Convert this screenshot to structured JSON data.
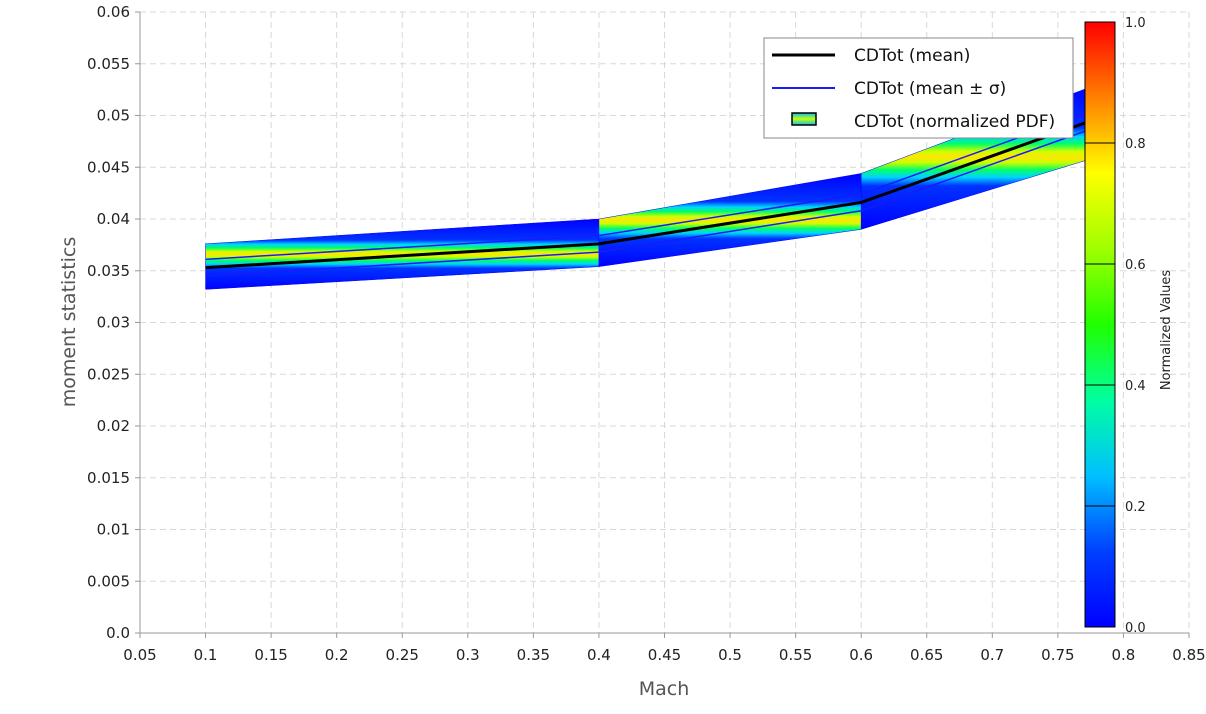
{
  "chart_data": {
    "type": "area",
    "xlabel": "Mach",
    "ylabel": "moment statistics",
    "xlim": [
      0.05,
      0.85
    ],
    "ylim": [
      0.0,
      0.06
    ],
    "xticks": [
      "0.05",
      "0.1",
      "0.15",
      "0.2",
      "0.25",
      "0.3",
      "0.35",
      "0.4",
      "0.45",
      "0.5",
      "0.55",
      "0.6",
      "0.65",
      "0.7",
      "0.75",
      "0.8",
      "0.85"
    ],
    "yticks": [
      "0.0",
      "0.005",
      "0.01",
      "0.015",
      "0.02",
      "0.025",
      "0.03",
      "0.035",
      "0.04",
      "0.045",
      "0.05",
      "0.055",
      "0.06"
    ],
    "grid": true,
    "x": [
      0.1,
      0.4,
      0.6,
      0.78
    ],
    "series": [
      {
        "name": "CDTot (mean)",
        "values": [
          0.0353,
          0.0376,
          0.0416,
          0.0497
        ],
        "color": "#000000"
      },
      {
        "name": "CDTot (mean ± σ)",
        "upper": [
          0.0361,
          0.0384,
          0.0424,
          0.0506
        ],
        "lower": [
          0.0345,
          0.0368,
          0.0408,
          0.0489
        ],
        "color": "#1a1aff"
      },
      {
        "name": "CDTot (normalized PDF)",
        "upper": [
          0.0376,
          0.04,
          0.0444,
          0.053
        ],
        "lower": [
          0.0332,
          0.0354,
          0.039,
          0.046
        ]
      }
    ],
    "legend": {
      "position": "top-right",
      "entries": [
        "CDTot (mean)",
        "CDTot (mean ± σ)",
        "CDTot (normalized PDF)"
      ]
    },
    "colorbar": {
      "label": "Normalized Values",
      "range": [
        0.0,
        1.0
      ],
      "ticks": [
        "0.0",
        "0.2",
        "0.4",
        "0.6",
        "0.8",
        "1.0"
      ],
      "colormap": "jet"
    }
  }
}
